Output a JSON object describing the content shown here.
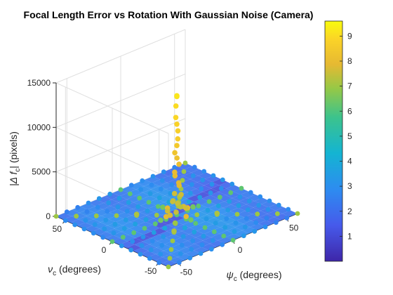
{
  "chart_data": {
    "type": "scatter",
    "title": "Focal Length Error vs Rotation With Gaussian Noise (Camera)",
    "x_axis": {
      "label": "ψ",
      "label_sub": "c",
      "label_rest": " (degrees)",
      "ticks": [
        -50,
        0,
        50
      ],
      "lim": [
        -60,
        60
      ]
    },
    "y_axis": {
      "label": "ν",
      "label_sub": "c",
      "label_rest": " (degrees)",
      "ticks": [
        -50,
        0,
        50
      ],
      "lim": [
        -60,
        60
      ]
    },
    "z_axis": {
      "label": "|Δ f",
      "label_sub": "c",
      "label_rest": "| (pixels)",
      "ticks": [
        0,
        5000,
        10000,
        15000
      ],
      "lim": [
        0,
        15000
      ]
    },
    "colorbar": {
      "ticks": [
        1,
        2,
        3,
        4,
        5,
        6,
        7,
        8,
        9
      ],
      "lim": [
        0,
        9.6
      ],
      "colormap": "parula"
    },
    "grid": true,
    "series": [
      {
        "points": [
          [
            0,
            0,
            13400,
            9.2
          ],
          [
            0,
            0,
            13300,
            9.1
          ],
          [
            0,
            1,
            12200,
            9.0
          ],
          [
            -1,
            0,
            11000,
            8.9
          ],
          [
            0,
            0,
            10200,
            8.8
          ],
          [
            1,
            0,
            9400,
            8.7
          ],
          [
            0,
            -1,
            8600,
            8.6
          ],
          [
            0,
            0,
            7800,
            8.5
          ],
          [
            -1,
            1,
            7000,
            8.3
          ],
          [
            1,
            1,
            6300,
            8.2
          ],
          [
            2,
            0,
            5600,
            8.1
          ],
          [
            -2,
            0,
            4900,
            8.0
          ],
          [
            0,
            2,
            4300,
            7.9
          ],
          [
            0,
            -2,
            3700,
            7.8
          ],
          [
            3,
            1,
            3100,
            7.8
          ],
          [
            -3,
            -1,
            2600,
            7.6
          ],
          [
            4,
            0,
            2100,
            7.6
          ],
          [
            -4,
            0,
            1700,
            7.5
          ],
          [
            0,
            4,
            1400,
            7.4
          ],
          [
            0,
            -4,
            1100,
            7.3
          ],
          [
            5,
            5,
            800,
            7.5
          ],
          [
            -5,
            -5,
            800,
            7.5
          ],
          [
            6,
            -3,
            600,
            7.6
          ],
          [
            -6,
            3,
            600,
            7.6
          ],
          [
            8,
            2,
            450,
            7.7
          ],
          [
            -8,
            -2,
            450,
            7.7
          ],
          [
            10,
            0,
            300,
            7.9
          ],
          [
            -10,
            0,
            300,
            7.9
          ],
          [
            0,
            10,
            300,
            7.9
          ],
          [
            0,
            -10,
            300,
            7.9
          ],
          [
            12,
            12,
            250,
            7.0
          ],
          [
            -12,
            -12,
            250,
            7.0
          ],
          [
            15,
            0,
            150,
            6.5
          ],
          [
            -15,
            0,
            150,
            6.5
          ],
          [
            0,
            15,
            150,
            6.5
          ],
          [
            0,
            -15,
            150,
            6.5
          ],
          [
            -20,
            -20,
            120,
            7.2
          ],
          [
            20,
            20,
            120,
            7.2
          ],
          [
            -20,
            20,
            120,
            7.2
          ],
          [
            20,
            -20,
            120,
            7.2
          ]
        ]
      }
    ]
  }
}
